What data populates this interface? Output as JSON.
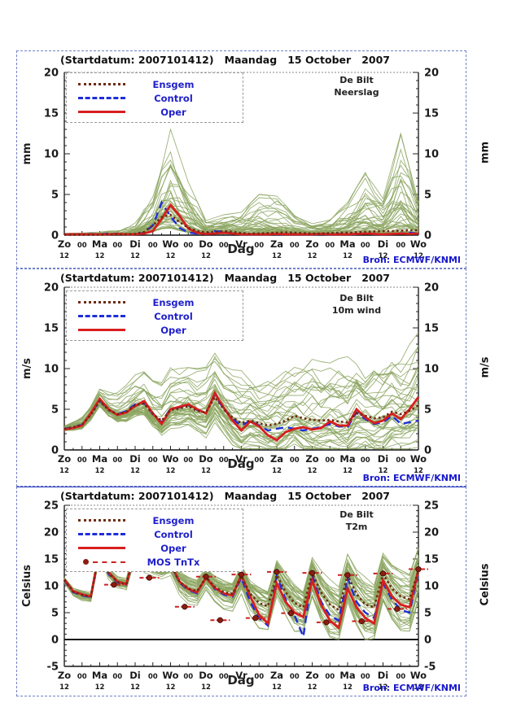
{
  "header": {
    "title": "(Startdatum: 2007101412)   Maandag   15 October   2007"
  },
  "footer": {
    "source": "Bron: ECMWF/KNMI"
  },
  "axis": {
    "days": [
      "Zo",
      "Ma",
      "Di",
      "Wo",
      "Do",
      "Vr",
      "Za",
      "Zo",
      "Ma",
      "Di",
      "Wo"
    ],
    "midnight_label": "00",
    "noon_label": "12",
    "xlabel": "Dag",
    "days_span": 10,
    "step_days": 0.25
  },
  "colors": {
    "ensemble_member": "#8ba55f",
    "oper": "#d81e1e",
    "control": "#1e2ed8",
    "ensgem": "#6e2a10",
    "mos_dot": "#8b1d12",
    "mos_bar": "#cc2222",
    "legend_text": "#2020cc",
    "source_text": "#1818cc",
    "frame": "#444444",
    "text": "#1a1a1a",
    "panel_border": "#7282c8"
  },
  "chart_data": [
    {
      "type": "line",
      "station": "De Bilt",
      "variable": "Neerslag",
      "ylabel": "mm",
      "ymin": 0,
      "ymax": 20,
      "yticks": [
        0,
        5,
        10,
        15,
        20
      ],
      "legend": [
        "Ensgem",
        "Control",
        "Oper"
      ],
      "ensemble_members": 42,
      "series": {
        "oper": [
          0.1,
          0.1,
          0.1,
          0.1,
          0.1,
          0.1,
          0.15,
          0.1,
          0.1,
          0.2,
          0.5,
          2.0,
          3.7,
          2.4,
          0.8,
          0.3,
          0.15,
          0.2,
          0.3,
          0.2,
          0.1,
          0.1,
          0.1,
          0.1,
          0.15,
          0.1,
          0.1,
          0.1,
          0.1,
          0.15,
          0.1,
          0.1,
          0.1,
          0.15,
          0.2,
          0.15,
          0.1,
          0.15,
          0.2,
          0.15,
          0.2
        ],
        "control": [
          0.1,
          0.1,
          0.1,
          0.15,
          0.1,
          0.2,
          0.15,
          0.1,
          0.1,
          0.3,
          1.2,
          4.0,
          2.3,
          0.9,
          0.3,
          0.2,
          0.15,
          0.5,
          0.4,
          0.2,
          0.1,
          0.1,
          0.1,
          0.1,
          0.1,
          0.1,
          0.15,
          0.1,
          0.1,
          0.1,
          0.1,
          0.15,
          0.1,
          0.1,
          0.2,
          0.1,
          0.15,
          0.1,
          0.2,
          0.3,
          0.2
        ],
        "ensgem": [
          0.05,
          0.05,
          0.05,
          0.05,
          0.05,
          0.1,
          0.1,
          0.1,
          0.15,
          0.4,
          1.2,
          2.2,
          2.5,
          1.6,
          0.9,
          0.5,
          0.35,
          0.4,
          0.5,
          0.4,
          0.25,
          0.2,
          0.2,
          0.25,
          0.3,
          0.35,
          0.3,
          0.25,
          0.2,
          0.2,
          0.25,
          0.3,
          0.3,
          0.35,
          0.4,
          0.45,
          0.5,
          0.5,
          0.55,
          0.6,
          0.6
        ]
      },
      "ensemble_max": [
        0.3,
        0.3,
        0.4,
        0.6,
        1.5,
        5.0,
        13.0,
        6.5,
        1.8,
        2.5,
        2.8,
        5.0,
        4.8,
        2.5,
        1.5,
        2.0,
        4.0,
        7.7,
        4.5,
        12.5,
        4.0
      ]
    },
    {
      "type": "line",
      "station": "De Bilt",
      "variable": "10m wind",
      "ylabel": "m/s",
      "ymin": 0,
      "ymax": 20,
      "yticks": [
        0,
        5,
        10,
        15,
        20
      ],
      "legend": [
        "Ensgem",
        "Control",
        "Oper"
      ],
      "ensemble_members": 42,
      "series": {
        "oper": [
          2.5,
          2.7,
          3.0,
          4.5,
          6.3,
          5.0,
          4.3,
          4.6,
          5.4,
          6.0,
          4.5,
          3.2,
          5.0,
          5.3,
          5.6,
          5.0,
          4.5,
          7.0,
          5.2,
          3.6,
          2.4,
          3.5,
          2.9,
          1.8,
          1.2,
          2.2,
          2.6,
          2.8,
          2.5,
          2.7,
          3.5,
          3.0,
          3.0,
          5.0,
          4.0,
          3.3,
          3.6,
          4.5,
          3.8,
          5.0,
          6.5
        ],
        "control": [
          2.6,
          2.8,
          3.1,
          4.4,
          6.1,
          4.9,
          4.4,
          4.8,
          5.6,
          5.8,
          4.4,
          3.4,
          5.1,
          5.2,
          5.5,
          4.9,
          4.6,
          6.8,
          5.0,
          3.8,
          3.0,
          3.6,
          3.0,
          2.4,
          2.6,
          2.8,
          2.6,
          2.4,
          2.6,
          2.8,
          3.2,
          2.9,
          2.8,
          4.6,
          3.8,
          3.2,
          3.4,
          4.2,
          3.2,
          3.4,
          3.6
        ],
        "ensgem": [
          2.6,
          2.8,
          3.1,
          4.3,
          6.0,
          4.9,
          4.4,
          4.7,
          5.5,
          5.7,
          4.4,
          3.6,
          4.9,
          5.1,
          5.4,
          4.8,
          4.6,
          6.5,
          5.0,
          4.0,
          3.3,
          3.6,
          3.3,
          3.0,
          3.2,
          3.6,
          4.2,
          3.9,
          3.7,
          3.6,
          3.7,
          3.5,
          3.4,
          4.5,
          4.2,
          3.9,
          4.0,
          4.7,
          4.4,
          4.8,
          5.5
        ]
      },
      "ensemble_spread": [
        0.4,
        0.7,
        1.0,
        1.5,
        2.0,
        2.2,
        2.8,
        2.6,
        3.0,
        2.8,
        3.5,
        3.0,
        3.5,
        3.2,
        4.0,
        3.8,
        4.5,
        4.0,
        4.5,
        4.0,
        4.8
      ]
    },
    {
      "type": "line",
      "station": "De Bilt",
      "variable": "T2m",
      "ylabel": "Celsius",
      "ymin": -5,
      "ymax": 25,
      "yticks": [
        -5,
        0,
        5,
        10,
        15,
        20,
        25
      ],
      "zero_line": true,
      "legend": [
        "Ensgem",
        "Control",
        "Oper",
        "MOS TnTx"
      ],
      "ensemble_members": 42,
      "series": {
        "oper": [
          11.2,
          9.0,
          8.4,
          8.0,
          17.0,
          12.5,
          10.8,
          10.3,
          16.5,
          14.3,
          13.6,
          13.3,
          14.2,
          10.8,
          9.4,
          8.8,
          11.5,
          9.6,
          8.6,
          8.2,
          12.0,
          8.0,
          4.6,
          3.0,
          10.5,
          7.0,
          5.0,
          4.2,
          11.0,
          6.5,
          3.5,
          2.2,
          9.5,
          6.0,
          4.0,
          3.0,
          11.0,
          8.0,
          6.5,
          6.0,
          13.0
        ],
        "control": [
          11.0,
          8.8,
          8.2,
          7.9,
          16.2,
          12.2,
          10.6,
          10.2,
          16.0,
          14.0,
          13.4,
          13.2,
          14.0,
          10.6,
          9.2,
          8.6,
          11.8,
          9.4,
          8.4,
          8.0,
          11.5,
          7.0,
          4.0,
          2.6,
          11.8,
          7.5,
          4.5,
          0.5,
          12.0,
          7.0,
          4.5,
          3.5,
          11.5,
          7.0,
          5.0,
          4.0,
          10.5,
          7.5,
          5.5,
          5.0,
          12.5
        ],
        "ensgem": [
          11.1,
          8.9,
          8.3,
          8.0,
          16.5,
          12.4,
          10.7,
          10.3,
          16.2,
          14.1,
          13.5,
          13.2,
          14.0,
          10.8,
          9.5,
          9.0,
          11.6,
          9.8,
          8.8,
          8.5,
          11.8,
          8.5,
          6.8,
          6.2,
          12.0,
          8.8,
          6.8,
          6.0,
          12.3,
          8.8,
          6.5,
          5.5,
          12.0,
          8.5,
          6.5,
          6.0,
          12.2,
          9.5,
          8.0,
          7.5,
          12.8
        ]
      },
      "ensemble_spread": [
        0.8,
        1.0,
        0.9,
        1.0,
        1.1,
        1.3,
        1.6,
        2.2,
        1.8,
        2.4,
        2.5,
        3.6,
        3.0,
        4.0,
        3.3,
        4.6,
        3.8,
        5.0,
        3.8,
        4.8,
        4.2
      ],
      "mos_tntx": [
        [
          1.4,
          10.2
        ],
        [
          2.4,
          11.5
        ],
        [
          3.0,
          14.2
        ],
        [
          3.4,
          6.1
        ],
        [
          4.0,
          11.7
        ],
        [
          4.4,
          3.6
        ],
        [
          5.0,
          12.1
        ],
        [
          5.4,
          4.0
        ],
        [
          6.0,
          12.6
        ],
        [
          6.4,
          4.9
        ],
        [
          7.0,
          12.4
        ],
        [
          7.4,
          3.2
        ],
        [
          8.0,
          12.0
        ],
        [
          8.4,
          3.4
        ],
        [
          9.0,
          12.3
        ],
        [
          9.4,
          5.7
        ],
        [
          10.0,
          13.1
        ]
      ]
    }
  ]
}
